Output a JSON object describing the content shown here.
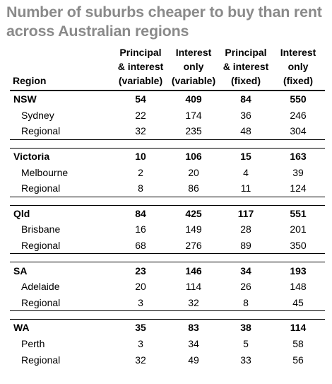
{
  "title": "Number of suburbs cheaper to buy than rent across Australian regions",
  "columns": {
    "region": "Region",
    "c1": [
      "Principal",
      "& interest",
      "(variable)"
    ],
    "c2": [
      "Interest",
      "only",
      "(variable)"
    ],
    "c3": [
      "Principal",
      "& interest",
      "(fixed)"
    ],
    "c4": [
      "Interest",
      "only",
      "(fixed)"
    ]
  },
  "groups": [
    {
      "name": "NSW",
      "values": [
        "54",
        "409",
        "84",
        "550"
      ],
      "rows": [
        {
          "name": "Sydney",
          "values": [
            "22",
            "174",
            "36",
            "246"
          ]
        },
        {
          "name": "Regional",
          "values": [
            "32",
            "235",
            "48",
            "304"
          ]
        }
      ]
    },
    {
      "name": "Victoria",
      "values": [
        "10",
        "106",
        "15",
        "163"
      ],
      "rows": [
        {
          "name": "Melbourne",
          "values": [
            "2",
            "20",
            "4",
            "39"
          ]
        },
        {
          "name": "Regional",
          "values": [
            "8",
            "86",
            "11",
            "124"
          ]
        }
      ]
    },
    {
      "name": "Qld",
      "values": [
        "84",
        "425",
        "117",
        "551"
      ],
      "rows": [
        {
          "name": "Brisbane",
          "values": [
            "16",
            "149",
            "28",
            "201"
          ]
        },
        {
          "name": "Regional",
          "values": [
            "68",
            "276",
            "89",
            "350"
          ]
        }
      ]
    },
    {
      "name": "SA",
      "values": [
        "23",
        "146",
        "34",
        "193"
      ],
      "rows": [
        {
          "name": "Adelaide",
          "values": [
            "20",
            "114",
            "26",
            "148"
          ]
        },
        {
          "name": "Regional",
          "values": [
            "3",
            "32",
            "8",
            "45"
          ]
        }
      ]
    },
    {
      "name": "WA",
      "values": [
        "35",
        "83",
        "38",
        "114"
      ],
      "rows": [
        {
          "name": "Perth",
          "values": [
            "3",
            "34",
            "5",
            "58"
          ]
        },
        {
          "name": "Regional",
          "values": [
            "32",
            "49",
            "33",
            "56"
          ]
        }
      ]
    }
  ]
}
